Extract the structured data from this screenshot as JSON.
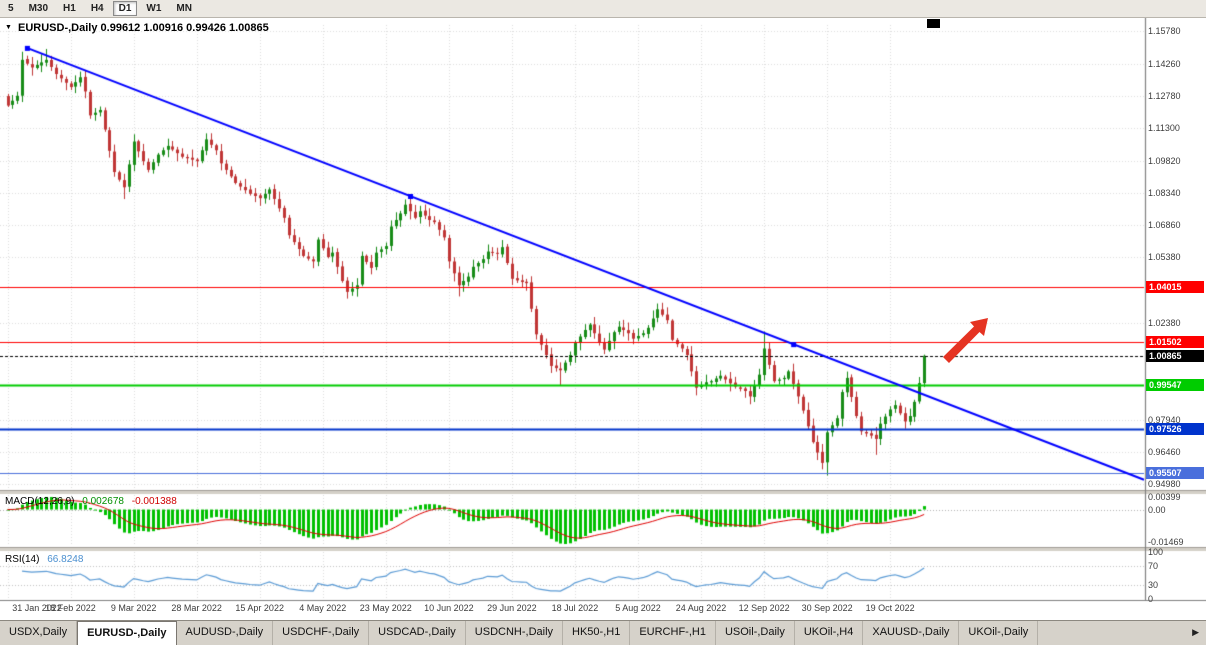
{
  "toolbar": {
    "timeframes": [
      {
        "label": "5",
        "active": false
      },
      {
        "label": "M30",
        "active": false
      },
      {
        "label": "H1",
        "active": false
      },
      {
        "label": "H4",
        "active": false
      },
      {
        "label": "D1",
        "active": true
      },
      {
        "label": "W1",
        "active": false
      },
      {
        "label": "MN",
        "active": false
      }
    ]
  },
  "quote_header": {
    "dropdown_icon": "▼",
    "symbol": "EURUSD-,Daily",
    "ohlc": "0.99612 1.00916 0.99426 1.00865"
  },
  "indicators": {
    "macd": {
      "title": "MACD(12,26,9)",
      "value1": "0.002678",
      "value2": "-0.001388",
      "axis_labels": [
        "0.00399",
        "0.00",
        "-0.01469"
      ]
    },
    "rsi": {
      "title": "RSI(14)",
      "value": "66.8248",
      "axis_labels": [
        {
          "v": 100,
          "t": "100"
        },
        {
          "v": 70,
          "t": "70"
        },
        {
          "v": 30,
          "t": "30"
        },
        {
          "v": 0,
          "t": "0"
        }
      ],
      "level_lines": [
        70,
        30
      ]
    }
  },
  "chart_data": {
    "type": "candlestick",
    "symbol": "EURUSD-",
    "timeframe": "Daily",
    "last_candle": {
      "open": 0.99612,
      "high": 1.00916,
      "low": 0.99426,
      "close": 1.00865
    },
    "num_candles": 190,
    "price_axis": {
      "top": 1.1605,
      "bottom": 0.9475,
      "grid_labels": [
        "1.15780",
        "1.14260",
        "1.12780",
        "1.11300",
        "1.09820",
        "1.08340",
        "1.06860",
        "1.05380",
        "1.02380",
        "0.97940",
        "0.96460",
        "0.94980"
      ]
    },
    "x_axis": {
      "step": 13,
      "labels": [
        "31 Jan 2022",
        "18 Feb 2022",
        "9 Mar 2022",
        "28 Mar 2022",
        "15 Apr 2022",
        "4 May 2022",
        "23 May 2022",
        "10 Jun 2022",
        "29 Jun 2022",
        "18 Jul 2022",
        "5 Aug 2022",
        "24 Aug 2022",
        "12 Sep 2022",
        "30 Sep 2022",
        "19 Oct 2022"
      ]
    },
    "close_anchors": [
      [
        0,
        1.1235
      ],
      [
        2,
        1.128
      ],
      [
        3,
        1.1445
      ],
      [
        5,
        1.141
      ],
      [
        8,
        1.1445
      ],
      [
        10,
        1.138
      ],
      [
        13,
        1.132
      ],
      [
        15,
        1.1365
      ],
      [
        16,
        1.13
      ],
      [
        17,
        1.119
      ],
      [
        19,
        1.1215
      ],
      [
        20,
        1.1125
      ],
      [
        22,
        1.093
      ],
      [
        24,
        1.086
      ],
      [
        26,
        1.107
      ],
      [
        28,
        1.098
      ],
      [
        29,
        1.094
      ],
      [
        31,
        1.101
      ],
      [
        33,
        1.105
      ],
      [
        36,
        1.1
      ],
      [
        39,
        1.098
      ],
      [
        41,
        1.108
      ],
      [
        43,
        1.103
      ],
      [
        44,
        1.097
      ],
      [
        47,
        1.088
      ],
      [
        50,
        1.083
      ],
      [
        52,
        1.081
      ],
      [
        54,
        1.085
      ],
      [
        57,
        1.072
      ],
      [
        58,
        1.064
      ],
      [
        61,
        1.0545
      ],
      [
        63,
        1.052
      ],
      [
        64,
        1.062
      ],
      [
        66,
        1.054
      ],
      [
        67,
        1.056
      ],
      [
        69,
        1.043
      ],
      [
        70,
        1.038
      ],
      [
        72,
        1.041
      ],
      [
        73,
        1.0545
      ],
      [
        75,
        1.049
      ],
      [
        76,
        1.056
      ],
      [
        78,
        1.059
      ],
      [
        79,
        1.068
      ],
      [
        81,
        1.074
      ],
      [
        82,
        1.078
      ],
      [
        84,
        1.072
      ],
      [
        85,
        1.075
      ],
      [
        87,
        1.071
      ],
      [
        88,
        1.07
      ],
      [
        90,
        1.063
      ],
      [
        91,
        1.052
      ],
      [
        93,
        1.041
      ],
      [
        95,
        1.045
      ],
      [
        96,
        1.0495
      ],
      [
        98,
        1.053
      ],
      [
        99,
        1.0565
      ],
      [
        101,
        1.0555
      ],
      [
        102,
        1.0585
      ],
      [
        104,
        1.044
      ],
      [
        106,
        1.0425
      ],
      [
        107,
        1.042
      ],
      [
        109,
        1.0185
      ],
      [
        111,
        1.009
      ],
      [
        112,
        1.004
      ],
      [
        114,
        1.002
      ],
      [
        116,
        1.009
      ],
      [
        117,
        1.0145
      ],
      [
        119,
        1.0205
      ],
      [
        120,
        1.023
      ],
      [
        122,
        1.015
      ],
      [
        123,
        1.0115
      ],
      [
        125,
        1.0195
      ],
      [
        126,
        1.022
      ],
      [
        128,
        1.019
      ],
      [
        129,
        1.0165
      ],
      [
        131,
        1.019
      ],
      [
        132,
        1.0215
      ],
      [
        134,
        1.03
      ],
      [
        136,
        1.025
      ],
      [
        137,
        1.016
      ],
      [
        139,
        1.012
      ],
      [
        140,
        1.009
      ],
      [
        142,
        0.994
      ],
      [
        144,
        0.9965
      ],
      [
        145,
        0.997
      ],
      [
        147,
        0.9995
      ],
      [
        149,
        0.996
      ],
      [
        150,
        0.9945
      ],
      [
        152,
        0.9925
      ],
      [
        153,
        0.99
      ],
      [
        155,
        1.0
      ],
      [
        156,
        1.012
      ],
      [
        158,
        0.997
      ],
      [
        160,
        0.9985
      ],
      [
        161,
        1.0015
      ],
      [
        163,
        0.99
      ],
      [
        164,
        0.9835
      ],
      [
        166,
        0.969
      ],
      [
        168,
        0.9595
      ],
      [
        169,
        0.9735
      ],
      [
        171,
        0.98
      ],
      [
        172,
        0.992
      ],
      [
        173,
        0.9985
      ],
      [
        175,
        0.981
      ],
      [
        176,
        0.974
      ],
      [
        178,
        0.972
      ],
      [
        179,
        0.9705
      ],
      [
        180,
        0.9775
      ],
      [
        182,
        0.984
      ],
      [
        183,
        0.986
      ],
      [
        185,
        0.9785
      ],
      [
        186,
        0.981
      ],
      [
        187,
        0.9875
      ],
      [
        188,
        0.99612
      ],
      [
        189,
        1.00865
      ]
    ],
    "candle_overrides": [
      {
        "i": 8,
        "high": 1.1495
      },
      {
        "i": 24,
        "low": 1.0806
      },
      {
        "i": 70,
        "low": 1.0349
      },
      {
        "i": 93,
        "low": 1.0359
      },
      {
        "i": 114,
        "low": 0.9952
      },
      {
        "i": 153,
        "low": 0.9864
      },
      {
        "i": 156,
        "high": 1.0198
      },
      {
        "i": 169,
        "low": 0.9537
      },
      {
        "i": 179,
        "low": 0.9632
      },
      {
        "i": 189,
        "open": 0.99612,
        "high": 1.00916,
        "low": 0.99426,
        "close": 1.00865
      }
    ],
    "levels": [
      {
        "price": 1.04015,
        "text": "1.04015",
        "color": "#ff0000",
        "style": "solid",
        "width": 1
      },
      {
        "price": 1.01502,
        "text": "1.01502",
        "color": "#ff0000",
        "style": "solid",
        "width": 1
      },
      {
        "price": 1.00865,
        "text": "1.00865",
        "color": "#000000",
        "style": "dashed",
        "width": 1,
        "current": true
      },
      {
        "price": 0.99547,
        "text": "0.99547",
        "color": "#00cc00",
        "style": "solid",
        "width": 2
      },
      {
        "price": 0.97526,
        "text": "0.97526",
        "color": "#0033cc",
        "style": "solid",
        "width": 2
      },
      {
        "price": 0.95507,
        "text": "0.95507",
        "color": "#4a6fdc",
        "style": "solid",
        "width": 1
      }
    ],
    "trendline": {
      "color": "#0000ff",
      "points": [
        [
          4,
          1.15
        ],
        [
          162,
          1.014
        ]
      ],
      "ray": true
    },
    "candle_colors": {
      "up": "#188c18",
      "down": "#c03636"
    },
    "indicator_colors": {
      "macd_hist": "#00c000",
      "macd_signal": "#e00000",
      "rsi_line": "#5b9bd5"
    },
    "annotation_arrow": {
      "color": "#e53322"
    }
  },
  "tabs": {
    "scroll_right_icon": "▶",
    "items": [
      {
        "label": "USDX,Daily",
        "active": false
      },
      {
        "label": "EURUSD-,Daily",
        "active": true
      },
      {
        "label": "AUDUSD-,Daily",
        "active": false
      },
      {
        "label": "USDCHF-,Daily",
        "active": false
      },
      {
        "label": "USDCAD-,Daily",
        "active": false
      },
      {
        "label": "USDCNH-,Daily",
        "active": false
      },
      {
        "label": "HK50-,H1",
        "active": false
      },
      {
        "label": "EURCHF-,H1",
        "active": false
      },
      {
        "label": "USOil-,Daily",
        "active": false
      },
      {
        "label": "UKOil-,H4",
        "active": false
      },
      {
        "label": "XAUUSD-,Daily",
        "active": false
      },
      {
        "label": "UKOil-,Daily",
        "active": false
      }
    ]
  }
}
